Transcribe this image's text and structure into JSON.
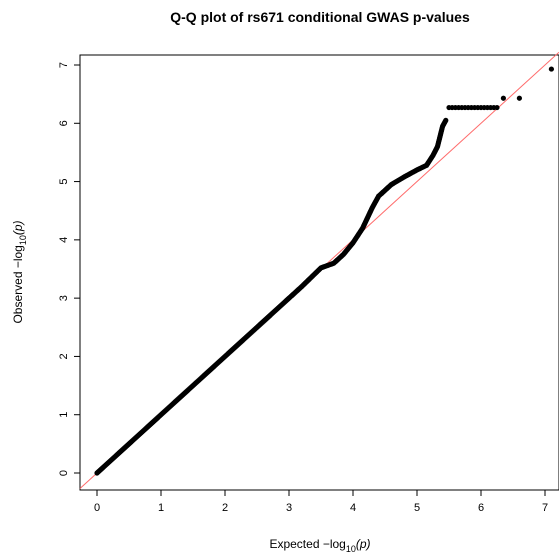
{
  "chart_data": {
    "type": "scatter",
    "title": "Q-Q plot of rs671 conditional GWAS p-values",
    "xlabel": "Expected  −log₁₀(p)",
    "ylabel": "Observed  −log₁₀(p)",
    "xlabel_parts": {
      "prefix": "Expected  −log",
      "sub": "10",
      "arg": "(p)"
    },
    "ylabel_parts": {
      "prefix": "Observed  −log",
      "sub": "10",
      "arg": "(p)"
    },
    "xlim": [
      0,
      7
    ],
    "ylim": [
      0,
      7
    ],
    "x_ticks": [
      "0",
      "1",
      "2",
      "3",
      "4",
      "5",
      "6",
      "7"
    ],
    "y_ticks": [
      "0",
      "1",
      "2",
      "3",
      "4",
      "5",
      "6",
      "7"
    ],
    "grid": false,
    "reference_line": {
      "slope": 1,
      "intercept": 0,
      "color": "#ff6b6b"
    },
    "point_color": "#000000",
    "series": [
      {
        "trend": [
          [
            0.0,
            0.0
          ],
          [
            0.5,
            0.5
          ],
          [
            1.0,
            1.0
          ],
          [
            1.5,
            1.5
          ],
          [
            2.0,
            2.0
          ],
          [
            2.5,
            2.5
          ],
          [
            3.0,
            3.0
          ],
          [
            3.2,
            3.2
          ],
          [
            3.5,
            3.52
          ],
          [
            3.7,
            3.6
          ],
          [
            3.85,
            3.75
          ],
          [
            4.0,
            3.95
          ],
          [
            4.15,
            4.2
          ],
          [
            4.3,
            4.55
          ],
          [
            4.4,
            4.75
          ],
          [
            4.6,
            4.95
          ],
          [
            4.8,
            5.08
          ],
          [
            5.0,
            5.2
          ],
          [
            5.15,
            5.28
          ],
          [
            5.25,
            5.45
          ],
          [
            5.32,
            5.6
          ],
          [
            5.4,
            5.95
          ],
          [
            5.45,
            6.05
          ]
        ],
        "tail_points": [
          [
            5.5,
            6.27
          ],
          [
            5.55,
            6.27
          ],
          [
            5.6,
            6.27
          ],
          [
            5.65,
            6.27
          ],
          [
            5.7,
            6.27
          ],
          [
            5.75,
            6.27
          ],
          [
            5.8,
            6.27
          ],
          [
            5.85,
            6.27
          ],
          [
            5.9,
            6.27
          ],
          [
            5.95,
            6.27
          ],
          [
            6.0,
            6.27
          ],
          [
            6.05,
            6.27
          ],
          [
            6.1,
            6.27
          ],
          [
            6.15,
            6.27
          ],
          [
            6.2,
            6.27
          ],
          [
            6.25,
            6.27
          ],
          [
            6.35,
            6.43
          ],
          [
            6.6,
            6.43
          ],
          [
            7.1,
            6.93
          ]
        ]
      }
    ]
  }
}
